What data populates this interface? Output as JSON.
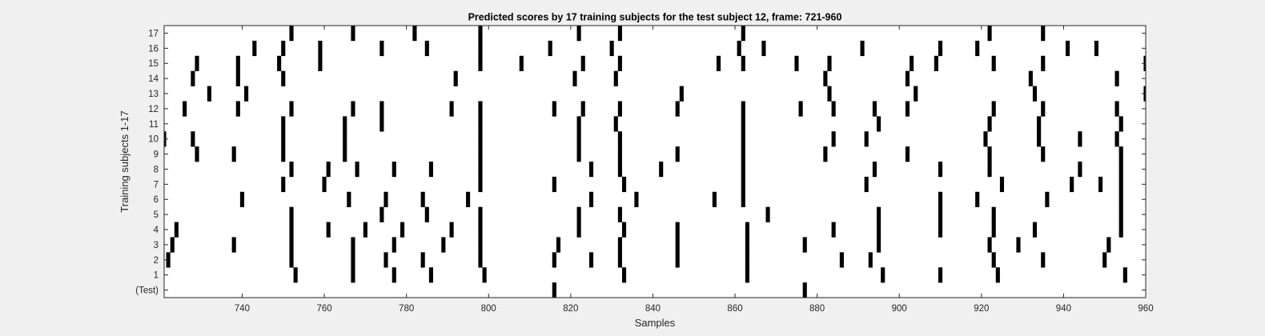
{
  "chart_data": {
    "type": "raster",
    "title": "Predicted scores by 17 training subjects for the test subject 12, frame: 721-960",
    "xlabel": "Samples",
    "ylabel": "Training subjects 1-17",
    "xlim": [
      721,
      960
    ],
    "x_ticks": [
      740,
      760,
      780,
      800,
      820,
      840,
      860,
      880,
      900,
      920,
      940,
      960
    ],
    "y_tick_labels": [
      "(Test)",
      "1",
      "2",
      "3",
      "4",
      "5",
      "6",
      "7",
      "8",
      "9",
      "10",
      "11",
      "12",
      "13",
      "14",
      "15",
      "16",
      "17"
    ],
    "grid": false,
    "legend": "none",
    "mark_color": "#000000",
    "rows": [
      {
        "label": "17",
        "x": [
          752,
          767,
          782,
          798,
          822,
          832,
          862,
          922,
          935
        ]
      },
      {
        "label": "16",
        "x": [
          743,
          750,
          759,
          774,
          785,
          798,
          815,
          830,
          861,
          867,
          891,
          910,
          919,
          941,
          948
        ]
      },
      {
        "label": "15",
        "x": [
          729,
          739,
          749,
          759,
          798,
          808,
          823,
          832,
          856,
          862,
          875,
          883,
          903,
          909,
          923,
          935,
          960
        ]
      },
      {
        "label": "14",
        "x": [
          728,
          739,
          750,
          792,
          821,
          831,
          882,
          902,
          932,
          953
        ]
      },
      {
        "label": "13",
        "x": [
          732,
          741,
          847,
          883,
          904,
          933,
          960
        ]
      },
      {
        "label": "12",
        "x": [
          726,
          739,
          752,
          767,
          774,
          791,
          798,
          816,
          823,
          832,
          846,
          862,
          876,
          884,
          894,
          902,
          923,
          935,
          953
        ]
      },
      {
        "label": "11",
        "x": [
          750,
          765,
          774,
          798,
          822,
          831,
          862,
          895,
          922,
          934,
          954
        ]
      },
      {
        "label": "10",
        "x": [
          721,
          728,
          750,
          765,
          798,
          822,
          832,
          862,
          884,
          892,
          921,
          934,
          944,
          953
        ]
      },
      {
        "label": "9",
        "x": [
          729,
          738,
          750,
          765,
          798,
          822,
          832,
          846,
          862,
          882,
          902,
          922,
          935,
          954
        ]
      },
      {
        "label": "8",
        "x": [
          752,
          761,
          768,
          777,
          786,
          798,
          825,
          832,
          842,
          862,
          894,
          910,
          922,
          944,
          954
        ]
      },
      {
        "label": "7",
        "x": [
          750,
          760,
          798,
          816,
          833,
          862,
          892,
          925,
          942,
          949,
          954
        ]
      },
      {
        "label": "6",
        "x": [
          740,
          766,
          775,
          784,
          795,
          825,
          836,
          855,
          862,
          910,
          919,
          936,
          954
        ]
      },
      {
        "label": "5",
        "x": [
          752,
          774,
          785,
          798,
          822,
          832,
          868,
          895,
          910,
          923,
          954
        ]
      },
      {
        "label": "4",
        "x": [
          724,
          752,
          761,
          770,
          779,
          791,
          798,
          822,
          833,
          846,
          863,
          884,
          895,
          910,
          923,
          933,
          954
        ]
      },
      {
        "label": "3",
        "x": [
          723,
          738,
          752,
          767,
          777,
          789,
          798,
          817,
          832,
          846,
          863,
          877,
          895,
          922,
          929,
          951
        ]
      },
      {
        "label": "2",
        "x": [
          722,
          752,
          767,
          775,
          784,
          798,
          816,
          825,
          832,
          846,
          863,
          886,
          893,
          923,
          935,
          950
        ]
      },
      {
        "label": "1",
        "x": [
          753,
          767,
          777,
          786,
          799,
          833,
          863,
          896,
          910,
          924,
          955
        ]
      },
      {
        "label": "(Test)",
        "x": [
          816,
          877
        ]
      }
    ]
  }
}
